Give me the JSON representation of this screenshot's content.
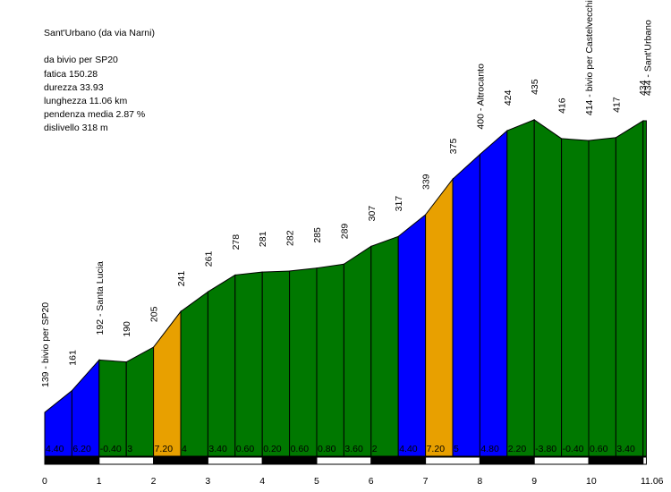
{
  "info": {
    "title": "Sant'Urbano (da via Narni)",
    "start": "da bivio per SP20",
    "fatica": "fatica 150.28",
    "durezza": "durezza 33.93",
    "lunghezza": "lunghezza 11.06 km",
    "pendenza": "pendenza media 2.87 %",
    "dislivello": "dislivello 318 m"
  },
  "colors": {
    "blue": "#0000ff",
    "green": "#007800",
    "orange": "#e8a000",
    "outline": "#000000",
    "bar": "#000000"
  },
  "chart_data": {
    "type": "area",
    "xlabel": "",
    "ylabel": "",
    "x_unit": "km",
    "xlim": [
      0,
      11.06
    ],
    "x_ticks": [
      "0",
      "1",
      "2",
      "3",
      "4",
      "5",
      "6",
      "7",
      "8",
      "9",
      "10",
      "11.06"
    ],
    "points": [
      {
        "km": 0.0,
        "alt": 139,
        "label": "139 - bivio per SP20"
      },
      {
        "km": 0.5,
        "alt": 161,
        "label": "161"
      },
      {
        "km": 1.0,
        "alt": 192,
        "label": "192 - Santa Lucia"
      },
      {
        "km": 1.5,
        "alt": 190,
        "label": "190"
      },
      {
        "km": 2.0,
        "alt": 205,
        "label": "205"
      },
      {
        "km": 2.5,
        "alt": 241,
        "label": "241"
      },
      {
        "km": 3.0,
        "alt": 261,
        "label": "261"
      },
      {
        "km": 3.5,
        "alt": 278,
        "label": "278"
      },
      {
        "km": 4.0,
        "alt": 281,
        "label": "281"
      },
      {
        "km": 4.5,
        "alt": 282,
        "label": "282"
      },
      {
        "km": 5.0,
        "alt": 285,
        "label": "285"
      },
      {
        "km": 5.5,
        "alt": 289,
        "label": "289"
      },
      {
        "km": 6.0,
        "alt": 307,
        "label": "307"
      },
      {
        "km": 6.5,
        "alt": 317,
        "label": "317"
      },
      {
        "km": 7.0,
        "alt": 339,
        "label": "339"
      },
      {
        "km": 7.5,
        "alt": 375,
        "label": "375"
      },
      {
        "km": 8.0,
        "alt": 400,
        "label": "400 - Altrocanto"
      },
      {
        "km": 8.5,
        "alt": 424,
        "label": "424"
      },
      {
        "km": 9.0,
        "alt": 435,
        "label": "435"
      },
      {
        "km": 9.5,
        "alt": 416,
        "label": "416"
      },
      {
        "km": 10.0,
        "alt": 414,
        "label": "414 - bivio per Castelvecchio"
      },
      {
        "km": 10.5,
        "alt": 417,
        "label": "417"
      },
      {
        "km": 11.0,
        "alt": 434,
        "label": "434"
      },
      {
        "km": 11.06,
        "alt": 434,
        "label": "434 - Sant'Urbano"
      }
    ],
    "segments": [
      {
        "from": 0.0,
        "to": 0.5,
        "gradient": "4.40",
        "color": "blue"
      },
      {
        "from": 0.5,
        "to": 1.0,
        "gradient": "6.20",
        "color": "blue"
      },
      {
        "from": 1.0,
        "to": 1.5,
        "gradient": "-0.40",
        "color": "green"
      },
      {
        "from": 1.5,
        "to": 2.0,
        "gradient": "3",
        "color": "green"
      },
      {
        "from": 2.0,
        "to": 2.5,
        "gradient": "7.20",
        "color": "orange"
      },
      {
        "from": 2.5,
        "to": 3.0,
        "gradient": "4",
        "color": "green"
      },
      {
        "from": 3.0,
        "to": 3.5,
        "gradient": "3.40",
        "color": "green"
      },
      {
        "from": 3.5,
        "to": 4.0,
        "gradient": "0.60",
        "color": "green"
      },
      {
        "from": 4.0,
        "to": 4.5,
        "gradient": "0.20",
        "color": "green"
      },
      {
        "from": 4.5,
        "to": 5.0,
        "gradient": "0.60",
        "color": "green"
      },
      {
        "from": 5.0,
        "to": 5.5,
        "gradient": "0.80",
        "color": "green"
      },
      {
        "from": 5.5,
        "to": 6.0,
        "gradient": "3.60",
        "color": "green"
      },
      {
        "from": 6.0,
        "to": 6.5,
        "gradient": "2",
        "color": "green"
      },
      {
        "from": 6.5,
        "to": 7.0,
        "gradient": "4.40",
        "color": "blue"
      },
      {
        "from": 7.0,
        "to": 7.5,
        "gradient": "7.20",
        "color": "orange"
      },
      {
        "from": 7.5,
        "to": 8.0,
        "gradient": "5",
        "color": "blue"
      },
      {
        "from": 8.0,
        "to": 8.5,
        "gradient": "4.80",
        "color": "blue"
      },
      {
        "from": 8.5,
        "to": 9.0,
        "gradient": "2.20",
        "color": "green"
      },
      {
        "from": 9.0,
        "to": 9.5,
        "gradient": "-3.80",
        "color": "green"
      },
      {
        "from": 9.5,
        "to": 10.0,
        "gradient": "-0.40",
        "color": "green"
      },
      {
        "from": 10.0,
        "to": 10.5,
        "gradient": "0.60",
        "color": "green"
      },
      {
        "from": 10.5,
        "to": 11.0,
        "gradient": "3.40",
        "color": "green"
      },
      {
        "from": 11.0,
        "to": 11.06,
        "gradient": "",
        "color": "green"
      }
    ]
  }
}
